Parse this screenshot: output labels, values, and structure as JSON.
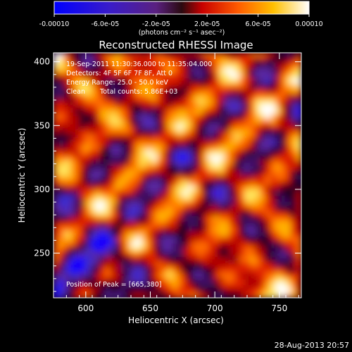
{
  "colorbar": {
    "tick_labels": [
      "-0.00010",
      "-6.0e-05",
      "-2.0e-05",
      "2.0e-05",
      "6.0e-05",
      "0.00010"
    ],
    "units_text": "(photons cm⁻² s⁻¹ asec⁻²)"
  },
  "chart_data": {
    "type": "heatmap",
    "title": "Reconstructed RHESSI Image",
    "xlabel": "Heliocentric X (arcsec)",
    "ylabel": "Heliocentric Y (arcsec)",
    "xlim": [
      575,
      767
    ],
    "ylim": [
      215,
      407
    ],
    "x_ticks": [
      600,
      650,
      700,
      750
    ],
    "y_ticks": [
      250,
      300,
      350,
      400
    ],
    "color_range": [
      -0.0001,
      0.0001
    ],
    "colormap": "blue-purple-red-orange-yellow-white",
    "annotations": [
      "19-Sep-2011 11:30:36.000 to 11:35:04.000",
      "Detectors: 4F 5F 6F 7F 8F, Att 0",
      "Energy Range: 25.0 - 50.0 keV",
      "Clean",
      "Total counts: 5.86E+03"
    ],
    "peak_label": "Position of Peak = [665,380]",
    "peak": [
      665,
      380
    ]
  },
  "footer": {
    "date": "28-Aug-2013 20:57"
  },
  "colors": {
    "background": "#000000",
    "text": "#ffffff"
  }
}
